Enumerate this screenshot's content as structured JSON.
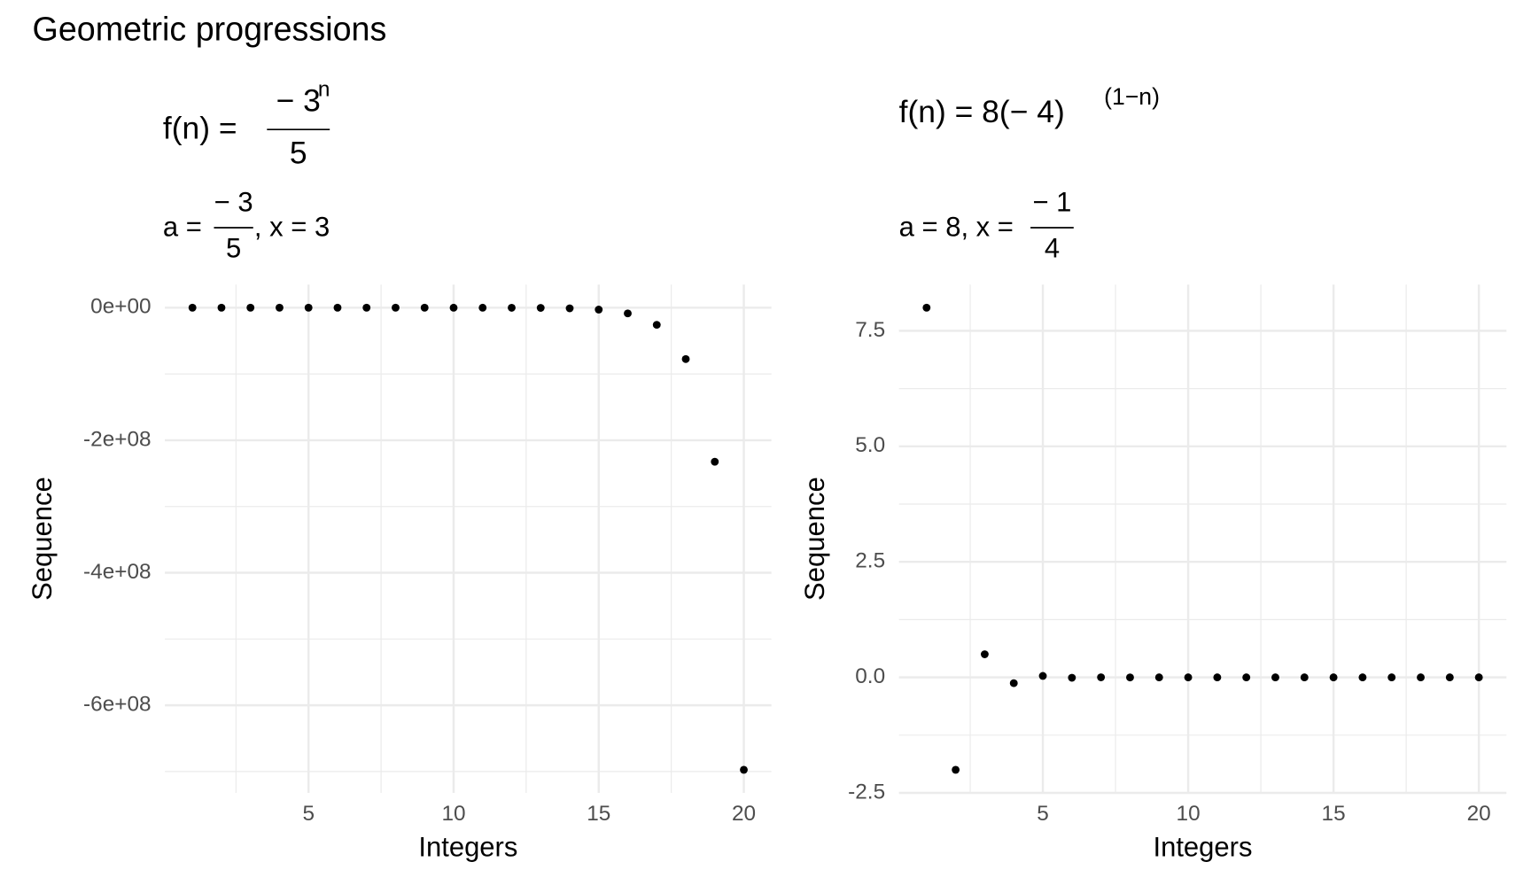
{
  "title": "Geometric progressions",
  "chart_data": [
    {
      "type": "scatter",
      "subtitle": {
        "lhs": "f(n) =",
        "numerator": "− 3",
        "exponent": "n",
        "denominator": "5"
      },
      "params": {
        "lhs": "a =",
        "numerator": "− 3",
        "denominator": "5",
        "rest": ", x = 3"
      },
      "x": [
        1,
        2,
        3,
        4,
        5,
        6,
        7,
        8,
        9,
        10,
        11,
        12,
        13,
        14,
        15,
        16,
        17,
        18,
        19,
        20
      ],
      "y": [
        -0.6,
        -1.8,
        -5.4,
        -16.2,
        -48.6,
        -145.8,
        -437.4,
        -1312.2,
        -3936.6,
        -11809.8,
        -35429.4,
        -106288.2,
        -318864.6,
        -956593.8,
        -2869781.4,
        -8609344.2,
        -25828032.6,
        -77484097.8,
        -232452293.4,
        -697356880.2
      ],
      "color": "#000000",
      "xlabel": "Integers",
      "ylabel": "Sequence",
      "xlim": [
        0.05,
        20.95
      ],
      "xticks": [
        5,
        10,
        15,
        20
      ],
      "ylim": [
        -732224724.2,
        34867843.4
      ],
      "yticks": [
        {
          "value": 0,
          "label": "0e+00"
        },
        {
          "value": -200000000,
          "label": "-2e+08"
        },
        {
          "value": -400000000,
          "label": "-4e+08"
        },
        {
          "value": -600000000,
          "label": "-6e+08"
        }
      ],
      "grid": true
    },
    {
      "type": "scatter",
      "subtitle": {
        "lhs": "f(n) = 8(− 4)",
        "exponent": "(1−n)"
      },
      "params": {
        "lhs": "a = 8, x =",
        "numerator": "− 1",
        "denominator": "4"
      },
      "x": [
        1,
        2,
        3,
        4,
        5,
        6,
        7,
        8,
        9,
        10,
        11,
        12,
        13,
        14,
        15,
        16,
        17,
        18,
        19,
        20
      ],
      "y": [
        8,
        -2,
        0.5,
        -0.125,
        0.03125,
        -0.0078125,
        0.001953125,
        -0.00048828125,
        0.0001220703125,
        -3.0517578125e-05,
        7.62939453125e-06,
        -1.9073486328125e-06,
        4.76837158203125e-07,
        -1.1920928955078125e-07,
        2.9802322387695312e-08,
        -7.450580596923828e-09,
        1.862645149230957e-09,
        -4.656612873077393e-10,
        1.1641532182693481e-10,
        -2.9103830456733704e-11
      ],
      "color": "#000000",
      "xlabel": "Integers",
      "ylabel": "Sequence",
      "xlim": [
        0.05,
        20.95
      ],
      "xticks": [
        5,
        10,
        15,
        20
      ],
      "ylim": [
        -2.5,
        8.5
      ],
      "yticks": [
        {
          "value": -2.5,
          "label": "-2.5"
        },
        {
          "value": 0,
          "label": "0.0"
        },
        {
          "value": 2.5,
          "label": "2.5"
        },
        {
          "value": 5,
          "label": "5.0"
        },
        {
          "value": 7.5,
          "label": "7.5"
        }
      ],
      "grid": true
    }
  ]
}
